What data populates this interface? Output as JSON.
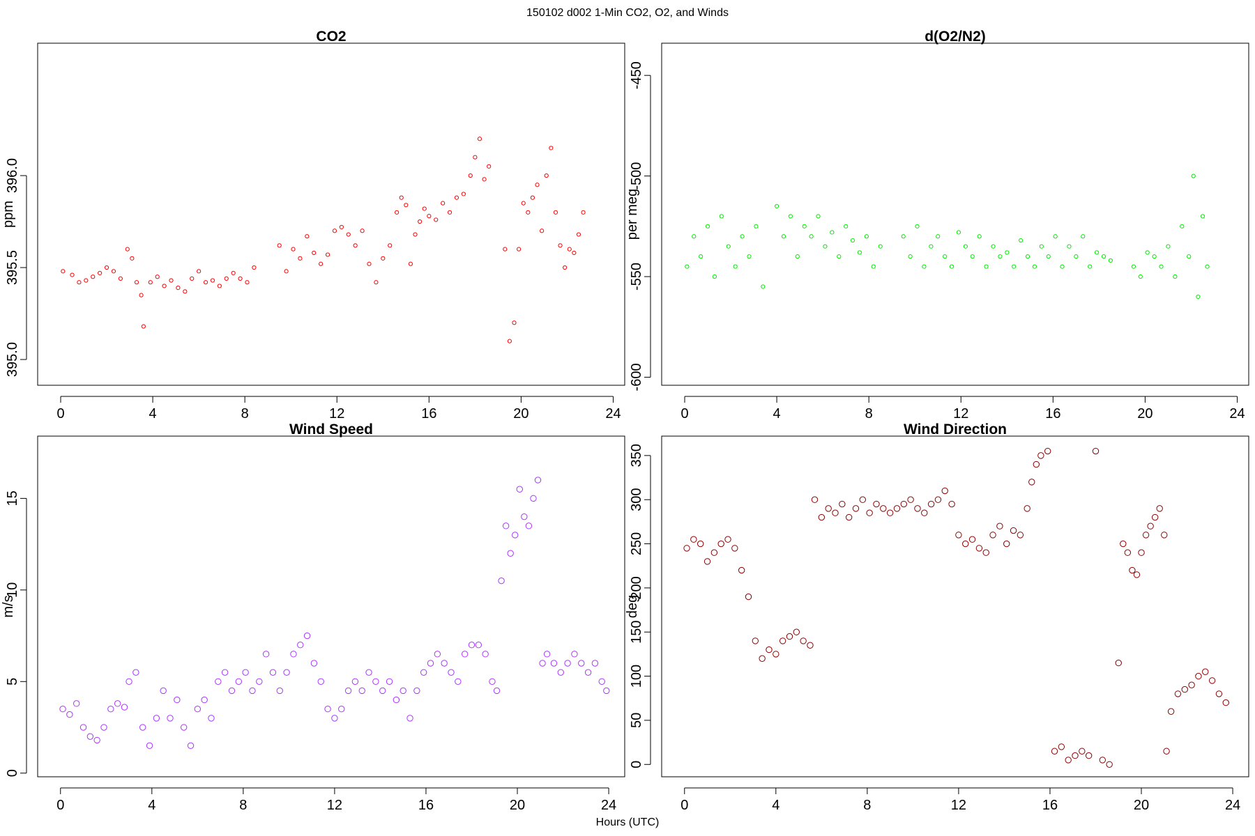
{
  "figure": {
    "title": "150102   d002   1-Min CO2, O2, and Winds",
    "xlabel": "Hours (UTC)"
  },
  "chart_data": [
    {
      "id": "co2",
      "type": "scatter",
      "title": "CO2",
      "xlabel": "",
      "ylabel": "ppm",
      "xlim": [
        -1,
        24.5
      ],
      "ylim": [
        394.86,
        396.72
      ],
      "xticks": [
        0,
        4,
        8,
        12,
        16,
        20,
        24
      ],
      "yticks": [
        395.0,
        395.5,
        396.0
      ],
      "ytick_labels": [
        "395.0",
        "395.5",
        "396.0"
      ],
      "color": "#ff0000",
      "series": [
        {
          "x": [
            0.1,
            0.5,
            0.8,
            1.1,
            1.4,
            1.7,
            2.0,
            2.3,
            2.6,
            2.9,
            3.1,
            3.3,
            3.5,
            3.6,
            3.9,
            4.2,
            4.5,
            4.8,
            5.1,
            5.4,
            5.7,
            6.0,
            6.3,
            6.6,
            6.9,
            7.2,
            7.5,
            7.8,
            8.1,
            8.4,
            9.5,
            9.8,
            10.1,
            10.4,
            10.7,
            11.0,
            11.3,
            11.6,
            11.9,
            12.2,
            12.5,
            12.8,
            13.1,
            13.4,
            13.7,
            14.0,
            14.3,
            14.6,
            14.8,
            15.0,
            15.2,
            15.4,
            15.6,
            15.8,
            16.0,
            16.3,
            16.6,
            16.9,
            17.2,
            17.5,
            17.8,
            18.0,
            18.2,
            18.4,
            18.6,
            19.3,
            19.5,
            19.7,
            19.9,
            20.1,
            20.3,
            20.5,
            20.7,
            20.9,
            21.1,
            21.3,
            21.5,
            21.7,
            21.9,
            22.1,
            22.3,
            22.5,
            22.7
          ],
          "y": [
            395.48,
            395.46,
            395.42,
            395.43,
            395.45,
            395.47,
            395.5,
            395.48,
            395.44,
            395.6,
            395.55,
            395.42,
            395.35,
            395.18,
            395.42,
            395.45,
            395.4,
            395.43,
            395.39,
            395.37,
            395.44,
            395.48,
            395.42,
            395.43,
            395.4,
            395.44,
            395.47,
            395.44,
            395.42,
            395.5,
            395.62,
            395.48,
            395.6,
            395.55,
            395.67,
            395.58,
            395.52,
            395.57,
            395.7,
            395.72,
            395.68,
            395.62,
            395.7,
            395.52,
            395.42,
            395.55,
            395.62,
            395.8,
            395.88,
            395.84,
            395.52,
            395.68,
            395.75,
            395.82,
            395.78,
            395.76,
            395.85,
            395.8,
            395.88,
            395.9,
            396.0,
            396.1,
            396.2,
            395.98,
            396.05,
            395.6,
            395.1,
            395.2,
            395.6,
            395.85,
            395.8,
            395.88,
            395.95,
            395.7,
            396.0,
            396.15,
            395.8,
            395.62,
            395.5,
            395.6,
            395.58,
            395.68,
            395.8
          ]
        }
      ]
    },
    {
      "id": "o2",
      "type": "scatter",
      "title": "d(O2/N2)",
      "xlabel": "",
      "ylabel": "per meg",
      "xlim": [
        -1,
        24.5
      ],
      "ylim": [
        -604,
        -434
      ],
      "xticks": [
        0,
        4,
        8,
        12,
        16,
        20,
        24
      ],
      "yticks": [
        -600,
        -550,
        -500,
        -450
      ],
      "ytick_labels": [
        "-600",
        "-550",
        "-500",
        "-450"
      ],
      "color": "#00ee00",
      "series": [
        {
          "x": [
            0.1,
            0.4,
            0.7,
            1.0,
            1.3,
            1.6,
            1.9,
            2.2,
            2.5,
            2.8,
            3.1,
            3.4,
            4.0,
            4.3,
            4.6,
            4.9,
            5.2,
            5.5,
            5.8,
            6.1,
            6.4,
            6.7,
            7.0,
            7.3,
            7.6,
            7.9,
            8.2,
            8.5,
            9.5,
            9.8,
            10.1,
            10.4,
            10.7,
            11.0,
            11.3,
            11.6,
            11.9,
            12.2,
            12.5,
            12.8,
            13.1,
            13.4,
            13.7,
            14.0,
            14.3,
            14.6,
            14.9,
            15.2,
            15.5,
            15.8,
            16.1,
            16.4,
            16.7,
            17.0,
            17.3,
            17.6,
            17.9,
            18.2,
            18.5,
            19.5,
            19.8,
            20.1,
            20.4,
            20.7,
            21.0,
            21.3,
            21.6,
            21.9,
            22.1,
            22.3,
            22.5,
            22.7
          ],
          "y": [
            -545,
            -530,
            -540,
            -525,
            -550,
            -520,
            -535,
            -545,
            -530,
            -540,
            -525,
            -555,
            -515,
            -530,
            -520,
            -540,
            -525,
            -530,
            -520,
            -535,
            -528,
            -540,
            -525,
            -532,
            -538,
            -530,
            -545,
            -535,
            -530,
            -540,
            -525,
            -545,
            -535,
            -530,
            -540,
            -545,
            -528,
            -535,
            -540,
            -530,
            -545,
            -535,
            -540,
            -538,
            -545,
            -532,
            -540,
            -545,
            -535,
            -540,
            -530,
            -545,
            -535,
            -540,
            -530,
            -545,
            -538,
            -540,
            -542,
            -545,
            -550,
            -538,
            -540,
            -545,
            -535,
            -550,
            -525,
            -540,
            -500,
            -560,
            -520,
            -545
          ]
        }
      ]
    },
    {
      "id": "wspd",
      "type": "scatter",
      "title": "Wind Speed",
      "xlabel": "",
      "ylabel": "m/s",
      "xlim": [
        -1,
        24.7
      ],
      "ylim": [
        -0.2,
        18.4
      ],
      "xticks": [
        0,
        4,
        8,
        12,
        16,
        20,
        24
      ],
      "yticks": [
        0,
        5,
        10,
        15
      ],
      "ytick_labels": [
        "0",
        "5",
        "10",
        "15"
      ],
      "color": "#aa33ff",
      "series": [
        {
          "x": [
            0.1,
            0.4,
            0.7,
            1.0,
            1.3,
            1.6,
            1.9,
            2.2,
            2.5,
            2.8,
            3.0,
            3.3,
            3.6,
            3.9,
            4.2,
            4.5,
            4.8,
            5.1,
            5.4,
            5.7,
            6.0,
            6.3,
            6.6,
            6.9,
            7.2,
            7.5,
            7.8,
            8.1,
            8.4,
            8.7,
            9.0,
            9.3,
            9.6,
            9.9,
            10.2,
            10.5,
            10.8,
            11.1,
            11.4,
            11.7,
            12.0,
            12.3,
            12.6,
            12.9,
            13.2,
            13.5,
            13.8,
            14.1,
            14.4,
            14.7,
            15.0,
            15.3,
            15.6,
            15.9,
            16.2,
            16.5,
            16.8,
            17.1,
            17.4,
            17.7,
            18.0,
            18.3,
            18.6,
            18.9,
            19.1,
            19.3,
            19.5,
            19.7,
            19.9,
            20.1,
            20.3,
            20.5,
            20.7,
            20.9,
            21.1,
            21.3,
            21.6,
            21.9,
            22.2,
            22.5,
            22.8,
            23.1,
            23.4,
            23.7,
            23.9
          ],
          "y": [
            3.5,
            3.2,
            3.8,
            2.5,
            2.0,
            1.8,
            2.5,
            3.5,
            3.8,
            3.6,
            5.0,
            5.5,
            2.5,
            1.5,
            3.0,
            4.5,
            3.0,
            4.0,
            2.5,
            1.5,
            3.5,
            4.0,
            3.0,
            5.0,
            5.5,
            4.5,
            5.0,
            5.5,
            4.5,
            5.0,
            6.5,
            5.5,
            4.5,
            5.5,
            6.5,
            7.0,
            7.5,
            6.0,
            5.0,
            3.5,
            3.0,
            3.5,
            4.5,
            5.0,
            4.5,
            5.5,
            5.0,
            4.5,
            5.0,
            4.0,
            4.5,
            3.0,
            4.5,
            5.5,
            6.0,
            6.5,
            6.0,
            5.5,
            5.0,
            6.5,
            7.0,
            7.0,
            6.5,
            5.0,
            4.5,
            10.5,
            13.5,
            12.0,
            13.0,
            15.5,
            14.0,
            13.5,
            15.0,
            16.0,
            6.0,
            6.5,
            6.0,
            5.5,
            6.0,
            6.5,
            6.0,
            5.5,
            6.0,
            5.0,
            4.5
          ]
        }
      ]
    },
    {
      "id": "wdir",
      "type": "scatter",
      "title": "Wind Direction",
      "xlabel": "",
      "ylabel": "deg",
      "xlim": [
        -1,
        24.7
      ],
      "ylim": [
        -14,
        372
      ],
      "xticks": [
        0,
        4,
        8,
        12,
        16,
        20,
        24
      ],
      "yticks": [
        0,
        50,
        100,
        150,
        200,
        250,
        300,
        350
      ],
      "ytick_labels": [
        "0",
        "50",
        "100",
        "150",
        "200",
        "250",
        "300",
        "350"
      ],
      "color": "#8b0000",
      "series": [
        {
          "x": [
            0.1,
            0.4,
            0.7,
            1.0,
            1.3,
            1.6,
            1.9,
            2.2,
            2.5,
            2.8,
            3.1,
            3.4,
            3.7,
            4.0,
            4.3,
            4.6,
            4.9,
            5.2,
            5.5,
            5.7,
            6.0,
            6.3,
            6.6,
            6.9,
            7.2,
            7.5,
            7.8,
            8.1,
            8.4,
            8.7,
            9.0,
            9.3,
            9.6,
            9.9,
            10.2,
            10.5,
            10.8,
            11.1,
            11.4,
            11.7,
            12.0,
            12.3,
            12.6,
            12.9,
            13.2,
            13.5,
            13.8,
            14.1,
            14.4,
            14.7,
            15.0,
            15.2,
            15.4,
            15.6,
            15.9,
            16.2,
            16.5,
            16.8,
            17.1,
            17.4,
            17.7,
            18.0,
            18.3,
            18.6,
            19.0,
            19.2,
            19.4,
            19.6,
            19.8,
            20.0,
            20.2,
            20.4,
            20.6,
            20.8,
            21.0,
            21.1,
            21.3,
            21.6,
            21.9,
            22.2,
            22.5,
            22.8,
            23.1,
            23.4,
            23.7
          ],
          "y": [
            245,
            255,
            250,
            230,
            240,
            250,
            255,
            245,
            220,
            190,
            140,
            120,
            130,
            125,
            140,
            145,
            150,
            140,
            135,
            300,
            280,
            290,
            285,
            295,
            280,
            290,
            300,
            285,
            295,
            290,
            285,
            290,
            295,
            300,
            290,
            285,
            295,
            300,
            310,
            295,
            260,
            250,
            255,
            245,
            240,
            260,
            270,
            250,
            265,
            260,
            290,
            320,
            340,
            350,
            355,
            15,
            20,
            5,
            10,
            15,
            10,
            355,
            5,
            0,
            115,
            250,
            240,
            220,
            215,
            240,
            260,
            270,
            280,
            290,
            260,
            15,
            60,
            80,
            85,
            90,
            100,
            105,
            95,
            80,
            70
          ]
        }
      ]
    }
  ]
}
